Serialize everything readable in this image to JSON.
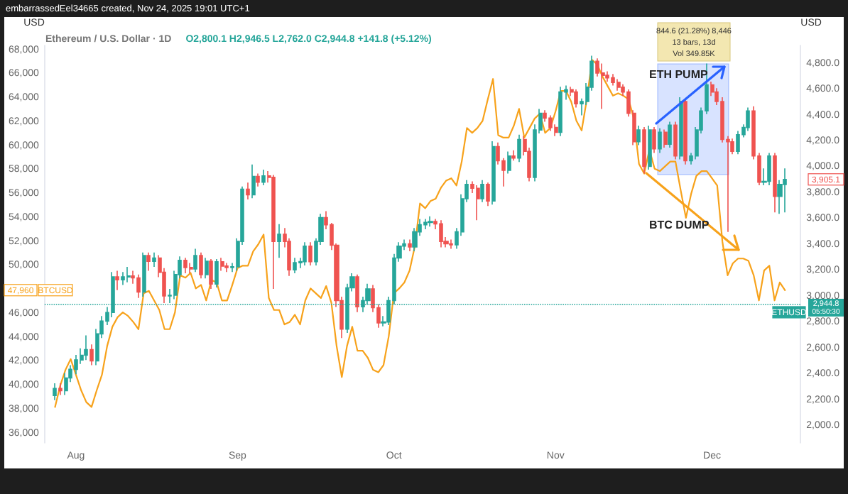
{
  "chart_data": {
    "type": "candlestick",
    "title": "Ethereum / U.S. Dollar · 1D",
    "subtitle": "O2,800.1 H2,946.5 L2,762.0 C2,944.8 +141.8 (+5.12%)",
    "ylabel": "USD",
    "y2label": "USD",
    "annotations": [
      "embarrassedEel34665 created, Nov 24, 2025 19:01 UTC+1",
      "844.6 (21.28%) 8,446",
      "13 bars, 13d",
      "Vol 349.85K",
      "ETH PUMP",
      "BTC DUMP",
      "47,960",
      "3,905.1",
      "ETHUSD",
      "05:50:30"
    ],
    "x": [
      "--07-28",
      "--07-29",
      "--07-30",
      "--07-31",
      "--08-01",
      "--08-02",
      "--08-03",
      "--08-04",
      "--08-05",
      "--08-06",
      "--08-07",
      "--08-08",
      "--08-09",
      "--08-10",
      "--08-11",
      "--08-12",
      "--08-13",
      "--08-14",
      "--08-15",
      "--08-16",
      "--08-17",
      "--08-18",
      "--08-19",
      "--08-20",
      "--08-21",
      "--08-22",
      "--08-23",
      "--08-24",
      "--08-25",
      "--08-26",
      "--08-27",
      "--08-28",
      "--08-29",
      "--08-30",
      "--08-31",
      "--09-01",
      "--09-02",
      "--09-03",
      "--09-04",
      "--09-05",
      "--09-06",
      "--09-07",
      "--09-08",
      "--09-09",
      "--09-10",
      "--09-11",
      "--09-12",
      "--09-13",
      "--09-14",
      "--09-15",
      "--09-16",
      "--09-17",
      "--09-18",
      "--09-19",
      "--09-20",
      "--09-21",
      "--09-22",
      "--09-23",
      "--09-24",
      "--09-25",
      "--09-26",
      "--09-27",
      "--09-28",
      "--09-29",
      "--09-30",
      "--10-01",
      "--10-02",
      "--10-03",
      "--10-04",
      "--10-05",
      "--10-06",
      "--10-07",
      "--10-08",
      "--10-09",
      "--10-10",
      "--10-11",
      "--10-12",
      "--10-13",
      "--10-14",
      "--10-15",
      "--10-16",
      "--10-17",
      "--10-18",
      "--10-19",
      "--10-20",
      "--10-21",
      "--10-22",
      "--10-23",
      "--10-24",
      "--10-25",
      "--10-26",
      "--10-27",
      "--10-28",
      "--10-29",
      "--10-30",
      "--10-31",
      "--11-01",
      "--11-02",
      "--11-03",
      "--11-04",
      "--11-05",
      "--11-06",
      "--11-07",
      "--11-08",
      "--11-09",
      "--11-10",
      "--11-11",
      "--11-12",
      "--11-13",
      "--11-14",
      "--11-15",
      "--11-16",
      "--11-17",
      "--11-18",
      "--11-19",
      "--11-20",
      "--11-21",
      "--11-22",
      "--11-23",
      "--11-24",
      "--11-25",
      "--11-26",
      "--11-27",
      "--11-28",
      "--11-29",
      "--11-30",
      "--12-01",
      "--12-02",
      "--12-03",
      "--12-04",
      "--12-05",
      "--12-06",
      "--12-07",
      "--12-08",
      "--12-09",
      "--12-10",
      "--12-11",
      "--12-12",
      "--12-13",
      "--12-14",
      "--12-15"
    ],
    "xlim": [
      "--07-26",
      "--12-18"
    ],
    "xticks": [
      {
        "value": "--08-01",
        "label": "Aug"
      },
      {
        "value": "--09-01",
        "label": "Sep"
      },
      {
        "value": "--10-01",
        "label": "Oct"
      },
      {
        "value": "--11-01",
        "label": "Nov"
      },
      {
        "value": "--12-01",
        "label": "Dec"
      }
    ],
    "ylim": [
      35200,
      68400
    ],
    "yticks": [
      {
        "value": 36000,
        "label": "36,000"
      },
      {
        "value": 38000,
        "label": "38,000"
      },
      {
        "value": 40000,
        "label": "40,000"
      },
      {
        "value": 42000,
        "label": "42,000"
      },
      {
        "value": 44000,
        "label": "44,000"
      },
      {
        "value": 46000,
        "label": "46,000"
      },
      {
        "value": 50000,
        "label": "50,000"
      },
      {
        "value": 52000,
        "label": "52,000"
      },
      {
        "value": 54000,
        "label": "54,000"
      },
      {
        "value": 56000,
        "label": "56,000"
      },
      {
        "value": 58000,
        "label": "58,000"
      },
      {
        "value": 60000,
        "label": "60,000"
      },
      {
        "value": 62000,
        "label": "62,000"
      },
      {
        "value": 64000,
        "label": "64,000"
      },
      {
        "value": 66000,
        "label": "66,000"
      },
      {
        "value": 68000,
        "label": "68,000"
      }
    ],
    "y2lim": [
      1870,
      4940
    ],
    "y2ticks": [
      {
        "value": 2000,
        "label": "2,000.0"
      },
      {
        "value": 2200,
        "label": "2,200.0"
      },
      {
        "value": 2400,
        "label": "2,400.0"
      },
      {
        "value": 2600,
        "label": "2,600.0"
      },
      {
        "value": 2800,
        "label": "2,800.0"
      },
      {
        "value": 3000,
        "label": "3,000.0"
      },
      {
        "value": 3200,
        "label": "3,200.0"
      },
      {
        "value": 3400,
        "label": "3,400.0"
      },
      {
        "value": 3600,
        "label": "3,600.0"
      },
      {
        "value": 3800,
        "label": "3,800.0"
      },
      {
        "value": 4000,
        "label": "4,000.0"
      },
      {
        "value": 4200,
        "label": "4,200.0"
      },
      {
        "value": 4400,
        "label": "4,400.0"
      },
      {
        "value": 4600,
        "label": "4,600.0"
      },
      {
        "value": 4800,
        "label": "4,800.0"
      }
    ],
    "ref_lines": [
      {
        "axis": "y2",
        "value": 2944.8,
        "label": "2,944.8",
        "color": "#26a69a",
        "line_style": "dotted"
      }
    ],
    "series": [
      {
        "type": "line",
        "name": "BTCUSD",
        "color": "#f7a21b",
        "axis": "y",
        "values": [
          38200,
          40000,
          41300,
          42200,
          40900,
          39600,
          38600,
          38200,
          39600,
          40900,
          43300,
          44900,
          45700,
          46100,
          45800,
          45300,
          44700,
          47700,
          47900,
          47100,
          46300,
          44700,
          44700,
          46100,
          49200,
          49000,
          49400,
          48100,
          48400,
          47100,
          48800,
          48600,
          47100,
          47100,
          48400,
          49800,
          50000,
          50000,
          51200,
          51800,
          52600,
          47300,
          46300,
          46300,
          45100,
          45300,
          45900,
          45100,
          47100,
          48100,
          47700,
          47300,
          48300,
          46900,
          43300,
          40700,
          43300,
          44900,
          42900,
          42900,
          42300,
          41300,
          41100,
          41700,
          44100,
          47700,
          48100,
          48600,
          49600,
          51600,
          55200,
          54800,
          55400,
          55600,
          56500,
          57100,
          57300,
          56700,
          58700,
          61500,
          61100,
          61500,
          62100,
          63900,
          65600,
          60900,
          60700,
          60700,
          61700,
          63100,
          60700,
          61500,
          62300,
          62700,
          61100,
          61500,
          62900,
          64600,
          64600,
          63700,
          62100,
          61300,
          63900,
          67200,
          66800,
          65800,
          65000,
          64200,
          64400,
          64200,
          63900,
          62300,
          58500,
          57700,
          59700,
          58100,
          57900,
          58300,
          58700,
          58700,
          56300,
          54000,
          56000,
          57500,
          57900,
          57900,
          57300,
          56700,
          52000,
          49200,
          50200,
          50600,
          50600,
          50400,
          49200,
          47100,
          49600,
          50000,
          47100,
          48600,
          47960
        ]
      },
      {
        "axis": "y2",
        "colors": [
          "#26a69a",
          "#ef5350",
          "#26a69a",
          "#26a69a",
          "#26a69a",
          "#26a69a",
          "#26a69a",
          "#ef5350",
          "#26a69a",
          "#26a69a",
          "#26a69a",
          "#26a69a",
          "#ef5350",
          "#26a69a",
          "#26a69a",
          "#ef5350",
          "#ef5350",
          "#26a69a",
          "#ef5350",
          "#26a69a",
          "#ef5350",
          "#ef5350",
          "#26a69a",
          "#26a69a",
          "#26a69a",
          "#ef5350",
          "#ef5350",
          "#26a69a",
          "#ef5350",
          "#26a69a",
          "#ef5350",
          "#26a69a",
          "#ef5350",
          "#ef5350",
          "#26a69a",
          "#26a69a",
          "#26a69a",
          "#ef5350",
          "#26a69a",
          "#ef5350",
          "#26a69a",
          "#ef5350",
          "#ef5350",
          "#26a69a",
          "#ef5350",
          "#ef5350",
          "#26a69a",
          "#26a69a",
          "#26a69a",
          "#ef5350",
          "#26a69a",
          "#26a69a",
          "#ef5350",
          "#ef5350",
          "#ef5350",
          "#ef5350",
          "#26a69a",
          "#26a69a",
          "#ef5350",
          "#26a69a",
          "#26a69a",
          "#ef5350",
          "#ef5350",
          "#26a69a",
          "#26a69a",
          "#26a69a",
          "#26a69a",
          "#26a69a",
          "#ef5350",
          "#26a69a",
          "#26a69a",
          "#26a69a",
          "#26a69a",
          "#ef5350",
          "#ef5350",
          "#ef5350",
          "#ef5350",
          "#26a69a",
          "#26a69a",
          "#26a69a",
          "#ef5350",
          "#ef5350",
          "#26a69a",
          "#ef5350",
          "#26a69a",
          "#ef5350",
          "#ef5350",
          "#26a69a",
          "#ef5350",
          "#26a69a",
          "#ef5350",
          "#ef5350",
          "#26a69a",
          "#26a69a",
          "#ef5350",
          "#ef5350",
          "#ef5350",
          "#26a69a",
          "#26a69a",
          "#ef5350",
          "#ef5350",
          "#26a69a",
          "#26a69a",
          "#26a69a",
          "#ef5350",
          "#ef5350",
          "#ef5350",
          "#ef5350",
          "#ef5350",
          "#ef5350",
          "#ef5350",
          "#ef5350",
          "#26a69a",
          "#ef5350",
          "#26a69a",
          "#ef5350",
          "#26a69a",
          "#ef5350",
          "#26a69a",
          "#ef5350",
          "#26a69a",
          "#ef5350",
          "#26a69a",
          "#26a69a",
          "#26a69a",
          "#26a69a",
          "#ef5350",
          "#ef5350",
          "#ef5350",
          "#ef5350",
          "#ef5350",
          "#26a69a",
          "#26a69a",
          "#26a69a",
          "#ef5350",
          "#ef5350",
          "#26a69a",
          "#26a69a",
          "#ef5350",
          "#26a69a",
          "#26a69a"
        ],
        "ohlc": [
          [
            2236,
            2330,
            2200,
            2291
          ],
          [
            2291,
            2330,
            2240,
            2273
          ],
          [
            2273,
            2410,
            2240,
            2372
          ],
          [
            2372,
            2470,
            2340,
            2438
          ],
          [
            2438,
            2550,
            2400,
            2511
          ],
          [
            2511,
            2600,
            2480,
            2547
          ],
          [
            2547,
            2700,
            2510,
            2591
          ],
          [
            2591,
            2630,
            2470,
            2503
          ],
          [
            2503,
            2750,
            2470,
            2712
          ],
          [
            2712,
            2850,
            2680,
            2811
          ],
          [
            2811,
            2920,
            2780,
            2877
          ],
          [
            2877,
            3190,
            2840,
            3152
          ],
          [
            3152,
            3200,
            3050,
            3130
          ],
          [
            3130,
            3190,
            3090,
            3152
          ],
          [
            3152,
            3230,
            3110,
            3160
          ],
          [
            3160,
            3200,
            3100,
            3145
          ],
          [
            3145,
            3170,
            2990,
            3035
          ],
          [
            3035,
            3340,
            3000,
            3317
          ],
          [
            3317,
            3340,
            3200,
            3273
          ],
          [
            3273,
            3340,
            3230,
            3298
          ],
          [
            3298,
            3320,
            3150,
            3188
          ],
          [
            3188,
            3220,
            2950,
            3005
          ],
          [
            3005,
            3060,
            2950,
            3010
          ],
          [
            3010,
            3200,
            2980,
            3170
          ],
          [
            3170,
            3310,
            3140,
            3280
          ],
          [
            3280,
            3300,
            3180,
            3225
          ],
          [
            3225,
            3260,
            3180,
            3214
          ],
          [
            3214,
            3370,
            3190,
            3317
          ],
          [
            3317,
            3340,
            3140,
            3170
          ],
          [
            3170,
            3300,
            3140,
            3273
          ],
          [
            3273,
            3290,
            3060,
            3097
          ],
          [
            3097,
            3290,
            3070,
            3269
          ],
          [
            3269,
            3300,
            3200,
            3236
          ],
          [
            3236,
            3260,
            3190,
            3225
          ],
          [
            3225,
            3260,
            3190,
            3230
          ],
          [
            3230,
            3450,
            3200,
            3426
          ],
          [
            3426,
            3850,
            3400,
            3829
          ],
          [
            3829,
            3880,
            3750,
            3786
          ],
          [
            3786,
            4020,
            3760,
            3928
          ],
          [
            3928,
            3950,
            3850,
            3884
          ],
          [
            3884,
            3980,
            3860,
            3932
          ],
          [
            3932,
            3970,
            3880,
            3921
          ],
          [
            3921,
            3940,
            3060,
            3426
          ],
          [
            3426,
            3560,
            3300,
            3482
          ],
          [
            3482,
            3530,
            3380,
            3426
          ],
          [
            3426,
            3450,
            3160,
            3207
          ],
          [
            3207,
            3300,
            3180,
            3262
          ],
          [
            3262,
            3300,
            3220,
            3270
          ],
          [
            3270,
            3420,
            3240,
            3390
          ],
          [
            3390,
            3420,
            3240,
            3269
          ],
          [
            3269,
            3450,
            3240,
            3426
          ],
          [
            3426,
            3640,
            3400,
            3610
          ],
          [
            3610,
            3660,
            3520,
            3555
          ],
          [
            3555,
            3570,
            3360,
            3397
          ],
          [
            3397,
            3410,
            2920,
            2969
          ],
          [
            2969,
            3000,
            2680,
            2749
          ],
          [
            2749,
            3100,
            2720,
            3068
          ],
          [
            3068,
            3180,
            3040,
            3152
          ],
          [
            3152,
            3170,
            2880,
            2921
          ],
          [
            2921,
            3000,
            2880,
            2969
          ],
          [
            2969,
            3100,
            2940,
            3060
          ],
          [
            3060,
            3090,
            2880,
            2914
          ],
          [
            2914,
            2940,
            2760,
            2797
          ],
          [
            2797,
            2850,
            2770,
            2804
          ],
          [
            2804,
            3000,
            2780,
            2969
          ],
          [
            2969,
            3330,
            2940,
            3298
          ],
          [
            3298,
            3420,
            3270,
            3390
          ],
          [
            3390,
            3440,
            3360,
            3408
          ],
          [
            3408,
            3440,
            3350,
            3383
          ],
          [
            3383,
            3530,
            3350,
            3500
          ],
          [
            3500,
            3600,
            3470,
            3555
          ],
          [
            3555,
            3600,
            3520,
            3573
          ],
          [
            3573,
            3620,
            3540,
            3580
          ],
          [
            3580,
            3600,
            3520,
            3562
          ],
          [
            3562,
            3590,
            3380,
            3426
          ],
          [
            3426,
            3460,
            3380,
            3408
          ],
          [
            3408,
            3440,
            3370,
            3400
          ],
          [
            3400,
            3530,
            3370,
            3500
          ],
          [
            3500,
            3790,
            3470,
            3756
          ],
          [
            3756,
            3900,
            3730,
            3866
          ],
          [
            3866,
            3890,
            3800,
            3837
          ],
          [
            3837,
            3860,
            3590,
            3756
          ],
          [
            3756,
            3900,
            3730,
            3866
          ],
          [
            3866,
            3880,
            3700,
            3738
          ],
          [
            3738,
            4200,
            3710,
            4159
          ],
          [
            4159,
            4190,
            4020,
            4049
          ],
          [
            4049,
            4070,
            3850,
            3976
          ],
          [
            3976,
            4120,
            3950,
            4086
          ],
          [
            4086,
            4130,
            4050,
            4070
          ],
          [
            4070,
            4250,
            4040,
            4214
          ],
          [
            4214,
            4240,
            4090,
            4122
          ],
          [
            4122,
            4150,
            3890,
            3921
          ],
          [
            3921,
            4330,
            3890,
            4287
          ],
          [
            4287,
            4450,
            4260,
            4416
          ],
          [
            4416,
            4440,
            4350,
            4379
          ],
          [
            4379,
            4400,
            4280,
            4306
          ],
          [
            4306,
            4330,
            4240,
            4269
          ],
          [
            4269,
            4620,
            4240,
            4580
          ],
          [
            4580,
            4630,
            4520,
            4599
          ],
          [
            4599,
            4620,
            4550,
            4580
          ],
          [
            4580,
            4600,
            4460,
            4489
          ],
          [
            4489,
            4530,
            4400,
            4507
          ],
          [
            4507,
            4650,
            4480,
            4617
          ],
          [
            4617,
            4860,
            4590,
            4818
          ],
          [
            4818,
            4840,
            4700,
            4727
          ],
          [
            4727,
            4800,
            4450,
            4709
          ],
          [
            4709,
            4740,
            4660,
            4690
          ],
          [
            4690,
            4720,
            4630,
            4654
          ],
          [
            4654,
            4680,
            4590,
            4617
          ],
          [
            4617,
            4640,
            4550,
            4580
          ],
          [
            4580,
            4600,
            4390,
            4416
          ],
          [
            4416,
            4440,
            4170,
            4196
          ],
          [
            4196,
            4320,
            4170,
            4287
          ],
          [
            4287,
            4310,
            3950,
            4005
          ],
          [
            4005,
            4320,
            3980,
            4287
          ],
          [
            4287,
            4310,
            4110,
            4141
          ],
          [
            4141,
            4300,
            4110,
            4269
          ],
          [
            4269,
            4290,
            4150,
            4177
          ],
          [
            4177,
            4350,
            4150,
            4324
          ],
          [
            4324,
            4350,
            4060,
            4086
          ],
          [
            4086,
            4540,
            4060,
            4507
          ],
          [
            4507,
            4530,
            4020,
            4049
          ],
          [
            4049,
            4110,
            4020,
            4086
          ],
          [
            4086,
            4310,
            4060,
            4287
          ],
          [
            4287,
            4460,
            4260,
            4434
          ],
          [
            4434,
            4800,
            4410,
            4635
          ],
          [
            4635,
            4660,
            4550,
            4580
          ],
          [
            4580,
            4610,
            4480,
            4507
          ],
          [
            4507,
            4540,
            4190,
            4214
          ],
          [
            4214,
            4240,
            3500,
            4196
          ],
          [
            4196,
            4220,
            4100,
            4122
          ],
          [
            4122,
            4280,
            4100,
            4251
          ],
          [
            4251,
            4330,
            4230,
            4306
          ],
          [
            4306,
            4460,
            4280,
            4434
          ],
          [
            4434,
            4470,
            4060,
            4086
          ],
          [
            4086,
            4110,
            3860,
            3884
          ],
          [
            3884,
            3990,
            3860,
            3890
          ],
          [
            3890,
            4110,
            3860,
            4086
          ],
          [
            4086,
            4110,
            3650,
            3774
          ],
          [
            3774,
            3900,
            3640,
            3866
          ],
          [
            3866,
            3990,
            3650,
            3905.1
          ]
        ]
      }
    ]
  }
}
